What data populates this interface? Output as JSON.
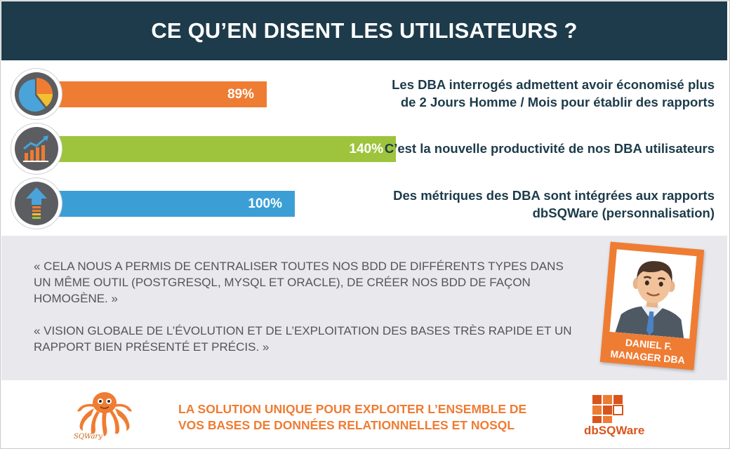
{
  "header": {
    "title": "CE QU’EN DISENT LES UTILISATEURS ?"
  },
  "colors": {
    "navy": "#1d3b4a",
    "orange": "#ef7c33",
    "green": "#9dc43c",
    "blue": "#3b9fd6",
    "icon_gray": "#5b5d60"
  },
  "stats": [
    {
      "value": "89%",
      "fill_percent": 89,
      "color": "#ef7c33",
      "icon": "pie-chart-icon",
      "text_lines": [
        "Les DBA interrogés admettent avoir économisé plus",
        "de 2 Jours Homme / Mois pour établir des rapports"
      ]
    },
    {
      "value": "140%",
      "fill_percent": 140,
      "color": "#9dc43c",
      "icon": "growth-chart-icon",
      "text_lines": [
        "C’est la nouvelle productivité de nos DBA utilisateurs"
      ]
    },
    {
      "value": "100%",
      "fill_percent": 100,
      "color": "#3b9fd6",
      "icon": "upload-arrow-icon",
      "text_lines": [
        "Des métriques des DBA sont intégrées aux rapports",
        "dbSQWare (personnalisation)"
      ]
    }
  ],
  "testimonial": {
    "quotes": [
      "« Cela nous a permis de centraliser toutes nos BDD de différents types dans un même outil (PostgreSQL, MySQL et Oracle), de créer nos BDD de façon homogène. »",
      "« Vision globale de l’évolution et de l’exploitation des bases très rapide et un rapport bien présenté et précis. »"
    ],
    "person": {
      "name": "DANIEL F.",
      "role": "MANAGER DBA",
      "icon": "man-avatar-icon"
    }
  },
  "footer": {
    "tagline_lines": [
      "LA SOLUTION UNIQUE POUR EXPLOITER L’ENSEMBLE DE",
      "VOS BASES DE DONNÉES RELATIONNELLES ET NOSQL"
    ],
    "left_logo_text": "SQWary",
    "right_logo_text": "dbSQWare"
  }
}
